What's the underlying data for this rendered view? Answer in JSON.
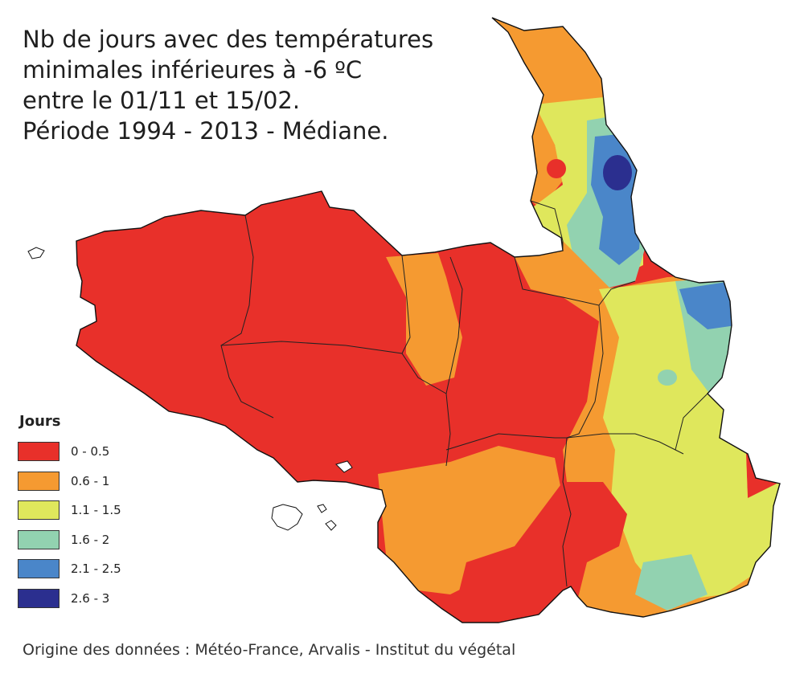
{
  "title_lines": [
    "Nb de jours avec des températures",
    "minimales inférieures à -6 ºC",
    "entre le 01/11 et 15/02.",
    "Période 1994 - 2013 - Médiane."
  ],
  "legend": {
    "title": "Jours",
    "items": [
      {
        "label": "0 - 0.5",
        "color": "#e8302a"
      },
      {
        "label": "0.6 - 1",
        "color": "#f59a31"
      },
      {
        "label": "1.1 - 1.5",
        "color": "#dfe75c"
      },
      {
        "label": "1.6 - 2",
        "color": "#92d2b0"
      },
      {
        "label": "2.1 - 2.5",
        "color": "#4a86c9"
      },
      {
        "label": "2.6 - 3",
        "color": "#2b2f8f"
      }
    ]
  },
  "source": "Origine des données : Météo-France, Arvalis - Institut du végétal"
}
